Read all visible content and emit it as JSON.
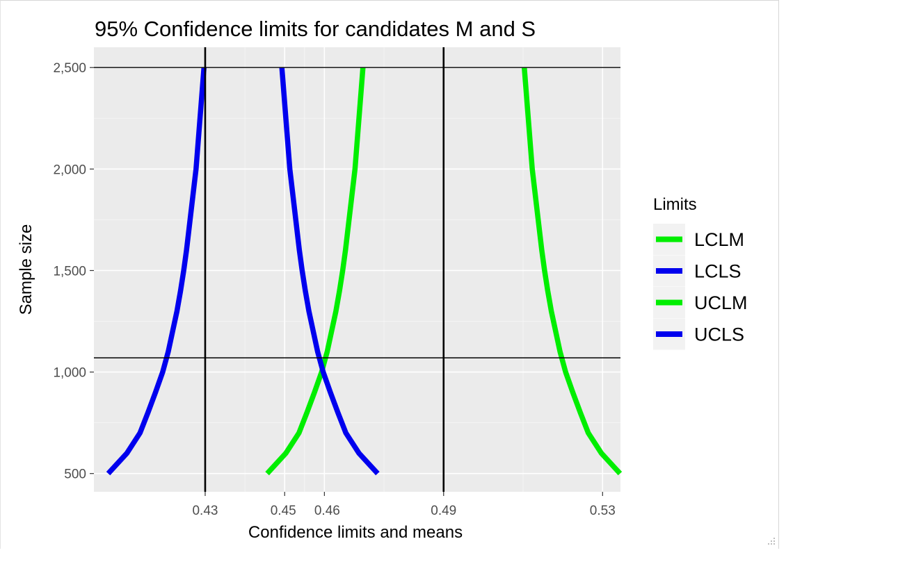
{
  "chart_data": {
    "type": "line",
    "title": "95% Confidence limits for candidates M and S",
    "xlabel": "Confidence limits and means",
    "ylabel": "Sample size",
    "xlim": [
      0.402,
      0.5345
    ],
    "ylim": [
      410,
      2600
    ],
    "x_ticks": [
      {
        "value": 0.43,
        "label": "0.43"
      },
      {
        "value": 0.45,
        "label": "0.45"
      },
      {
        "value": 0.46,
        "label": "0.46"
      },
      {
        "value": 0.49,
        "label": "0.49"
      },
      {
        "value": 0.53,
        "label": "0.53"
      }
    ],
    "y_ticks": [
      {
        "value": 500,
        "label": "500"
      },
      {
        "value": 1000,
        "label": "1,000"
      },
      {
        "value": 1500,
        "label": "1,500"
      },
      {
        "value": 2000,
        "label": "2,000"
      },
      {
        "value": 2500,
        "label": "2,500"
      }
    ],
    "vlines": [
      0.43,
      0.49
    ],
    "hlines": [
      2500,
      1070
    ],
    "grid": true,
    "legend": {
      "title": "Limits",
      "position": "right",
      "entries": [
        {
          "label": "LCLM",
          "color": "#00ee00"
        },
        {
          "label": "LCLS",
          "color": "#0000ee"
        },
        {
          "label": "UCLM",
          "color": "#00ee00"
        },
        {
          "label": "UCLS",
          "color": "#0000ee"
        }
      ]
    },
    "series": [
      {
        "name": "LCLM",
        "color": "#00ee00",
        "points": [
          [
            0.4456,
            500
          ],
          [
            0.4503,
            600
          ],
          [
            0.4536,
            700
          ],
          [
            0.4556,
            800
          ],
          [
            0.4575,
            900
          ],
          [
            0.4593,
            1000
          ],
          [
            0.4607,
            1100
          ],
          [
            0.4618,
            1200
          ],
          [
            0.4629,
            1300
          ],
          [
            0.4638,
            1400
          ],
          [
            0.4646,
            1500
          ],
          [
            0.4653,
            1600
          ],
          [
            0.4659,
            1700
          ],
          [
            0.4665,
            1800
          ],
          [
            0.4671,
            1900
          ],
          [
            0.4677,
            2000
          ],
          [
            0.4681,
            2100
          ],
          [
            0.4685,
            2200
          ],
          [
            0.4689,
            2300
          ],
          [
            0.4693,
            2400
          ],
          [
            0.4697,
            2500
          ]
        ]
      },
      {
        "name": "UCLM",
        "color": "#00ee00",
        "points": [
          [
            0.5344,
            500
          ],
          [
            0.5297,
            600
          ],
          [
            0.5264,
            700
          ],
          [
            0.5244,
            800
          ],
          [
            0.5225,
            900
          ],
          [
            0.5207,
            1000
          ],
          [
            0.5193,
            1100
          ],
          [
            0.5182,
            1200
          ],
          [
            0.5171,
            1300
          ],
          [
            0.5162,
            1400
          ],
          [
            0.5154,
            1500
          ],
          [
            0.5147,
            1600
          ],
          [
            0.5141,
            1700
          ],
          [
            0.5135,
            1800
          ],
          [
            0.5129,
            1900
          ],
          [
            0.5123,
            2000
          ],
          [
            0.5119,
            2100
          ],
          [
            0.5115,
            2200
          ],
          [
            0.5111,
            2300
          ],
          [
            0.5107,
            2400
          ],
          [
            0.5103,
            2500
          ]
        ]
      },
      {
        "name": "LCLS",
        "color": "#0000ee",
        "points": [
          [
            0.4734,
            500
          ],
          [
            0.4687,
            600
          ],
          [
            0.4654,
            700
          ],
          [
            0.4634,
            800
          ],
          [
            0.4615,
            900
          ],
          [
            0.4597,
            1000
          ],
          [
            0.4583,
            1100
          ],
          [
            0.4572,
            1200
          ],
          [
            0.4561,
            1300
          ],
          [
            0.4552,
            1400
          ],
          [
            0.4544,
            1500
          ],
          [
            0.4537,
            1600
          ],
          [
            0.4531,
            1700
          ],
          [
            0.4525,
            1800
          ],
          [
            0.4519,
            1900
          ],
          [
            0.4513,
            2000
          ],
          [
            0.4509,
            2100
          ],
          [
            0.4505,
            2200
          ],
          [
            0.4501,
            2300
          ],
          [
            0.4497,
            2400
          ],
          [
            0.4493,
            2500
          ]
        ]
      },
      {
        "name": "UCLS",
        "color": "#0000ee",
        "points": [
          [
            0.4056,
            500
          ],
          [
            0.4103,
            600
          ],
          [
            0.4136,
            700
          ],
          [
            0.4156,
            800
          ],
          [
            0.4175,
            900
          ],
          [
            0.4193,
            1000
          ],
          [
            0.4207,
            1100
          ],
          [
            0.4218,
            1200
          ],
          [
            0.4229,
            1300
          ],
          [
            0.4238,
            1400
          ],
          [
            0.4246,
            1500
          ],
          [
            0.4253,
            1600
          ],
          [
            0.4259,
            1700
          ],
          [
            0.4265,
            1800
          ],
          [
            0.4271,
            1900
          ],
          [
            0.4277,
            2000
          ],
          [
            0.4281,
            2100
          ],
          [
            0.4285,
            2200
          ],
          [
            0.4289,
            2300
          ],
          [
            0.4293,
            2400
          ],
          [
            0.4297,
            2500
          ]
        ]
      }
    ]
  }
}
